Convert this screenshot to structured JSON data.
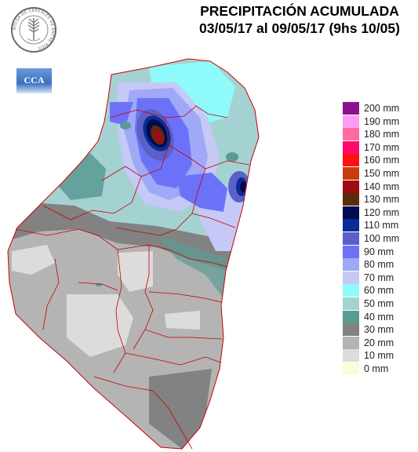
{
  "title": {
    "line1": "PRECIPITACIÓN ACUMULADA",
    "line2": "03/05/17 al 09/05/17 (9hs 10/05)"
  },
  "logos": {
    "bolsa": {
      "icon": "bolsa-de-cereales-seal",
      "ring_text": "BOLSA DE CEREALES DE ENTRE RIOS"
    },
    "cca": {
      "icon": "cca-logo",
      "text": "CCA"
    }
  },
  "legend": [
    {
      "label": "200 mm",
      "color": "#8e0f8e"
    },
    {
      "label": "190 mm",
      "color": "#ff9cf0"
    },
    {
      "label": "180 mm",
      "color": "#ff6aa0"
    },
    {
      "label": "170 mm",
      "color": "#ff0a6c"
    },
    {
      "label": "160 mm",
      "color": "#ff1010"
    },
    {
      "label": "150 mm",
      "color": "#c83c0c"
    },
    {
      "label": "140 mm",
      "color": "#a00c14"
    },
    {
      "label": "130 mm",
      "color": "#5a2c08"
    },
    {
      "label": "120 mm",
      "color": "#000a50"
    },
    {
      "label": "110 mm",
      "color": "#0a2c96"
    },
    {
      "label": "100 mm",
      "color": "#5a60c8"
    },
    {
      "label": "90 mm",
      "color": "#6c72f8"
    },
    {
      "label": "80 mm",
      "color": "#a0a8f8"
    },
    {
      "label": "70 mm",
      "color": "#c6c8f6"
    },
    {
      "label": "60 mm",
      "color": "#8efafa"
    },
    {
      "label": "50 mm",
      "color": "#a4d2d2"
    },
    {
      "label": "40 mm",
      "color": "#5c9a94"
    },
    {
      "label": "30 mm",
      "color": "#828282"
    },
    {
      "label": "20 mm",
      "color": "#b4b4b4"
    },
    {
      "label": "10 mm",
      "color": "#dcdcdc"
    },
    {
      "label": "0 mm",
      "color": "#fcfcd6"
    }
  ]
}
